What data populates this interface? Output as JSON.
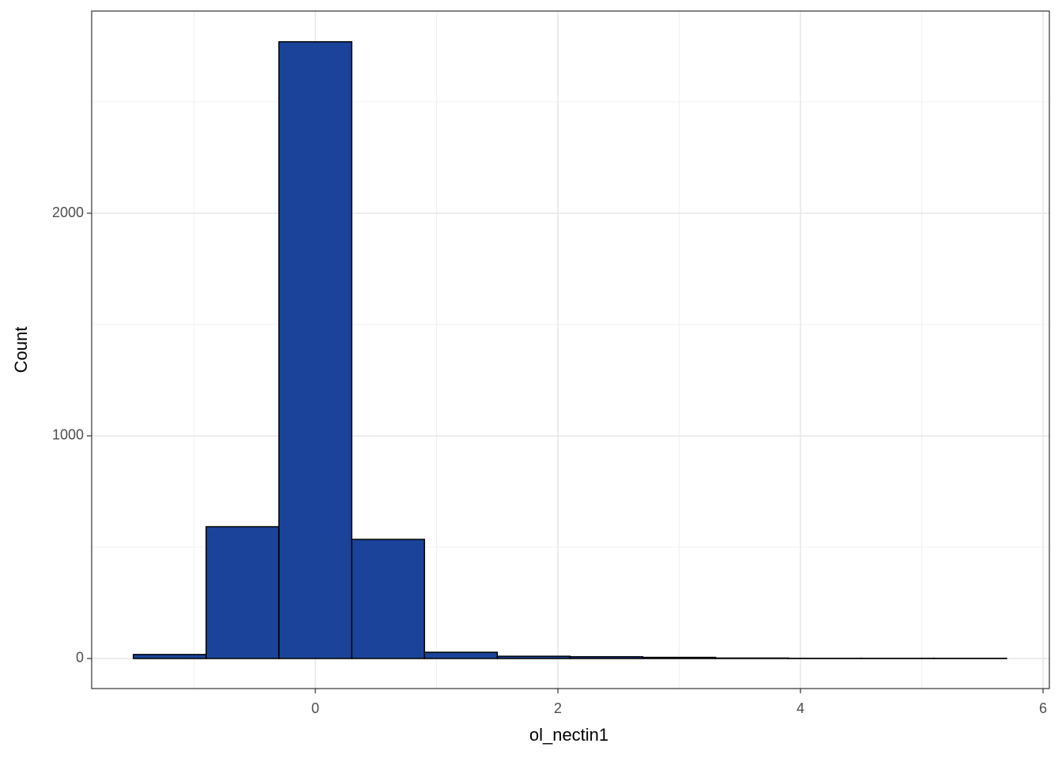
{
  "chart_data": {
    "type": "histogram",
    "x_label": "ol_nectin1",
    "y_label": "Count",
    "bins": [
      -1.5,
      -0.9,
      -0.3,
      0.3,
      0.9,
      1.5,
      2.1,
      2.7,
      3.3,
      3.9,
      4.5,
      5.1,
      5.7
    ],
    "values": [
      18,
      592,
      2770,
      535,
      28,
      10,
      8,
      5,
      2,
      1,
      1,
      1
    ],
    "color": "#1a4399",
    "edge_color": "#000000",
    "xlim": [
      -1.844,
      6.052
    ],
    "ylim": [
      -135,
      2908
    ],
    "xticks": [
      0,
      2,
      4,
      6
    ],
    "yticks": [
      0,
      1000,
      2000
    ],
    "minor_xticks": [
      -1,
      1,
      3,
      5
    ],
    "minor_yticks": [
      500,
      1500,
      2500
    ],
    "grid": true
  }
}
